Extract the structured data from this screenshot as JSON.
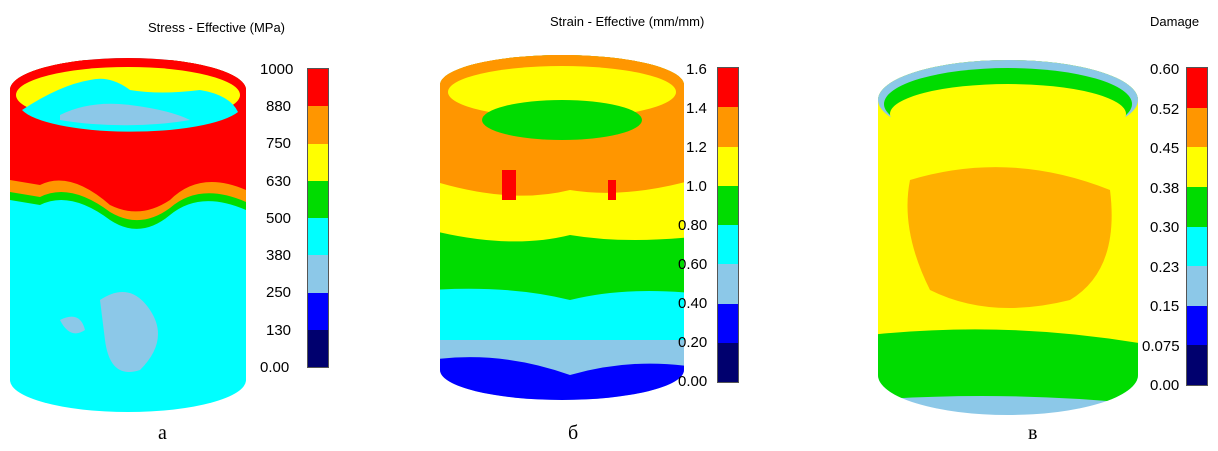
{
  "palette": [
    "#00006e",
    "#0000ff",
    "#8cc8e8",
    "#00ffff",
    "#00dc00",
    "#ffff00",
    "#ff9600",
    "#ff0000"
  ],
  "panels": [
    {
      "title": "Stress - Effective (MPa)",
      "ticks": [
        "1000",
        "880",
        "750",
        "630",
        "500",
        "380",
        "250",
        "130",
        "0.00"
      ],
      "caption": "а"
    },
    {
      "title": "Strain - Effective (mm/mm)",
      "ticks": [
        "1.6",
        "1.4",
        "1.2",
        "1.0",
        "0.80",
        "0.60",
        "0.40",
        "0.20",
        "0.00"
      ],
      "caption": "б"
    },
    {
      "title": "Damage",
      "ticks": [
        "0.60",
        "0.52",
        "0.45",
        "0.38",
        "0.30",
        "0.23",
        "0.15",
        "0.075",
        "0.00"
      ],
      "caption": "в"
    }
  ]
}
